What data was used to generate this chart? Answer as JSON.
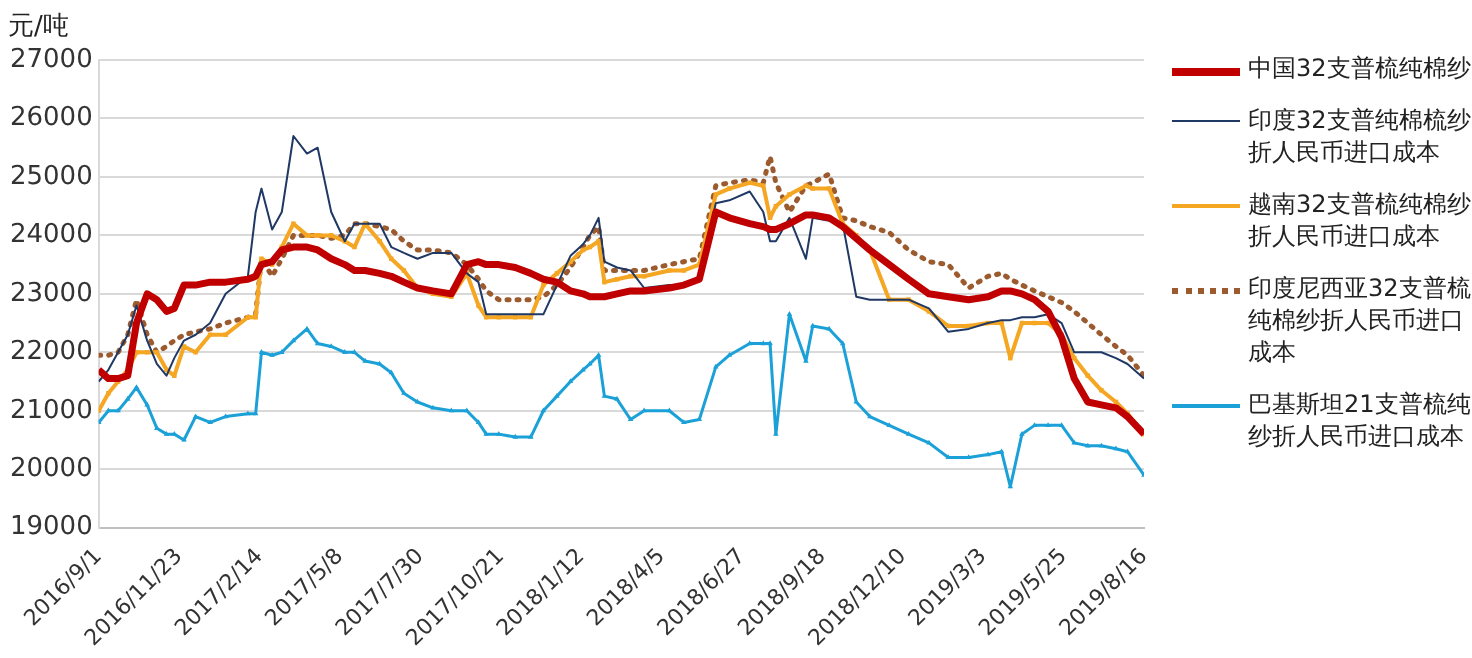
{
  "chart_data": {
    "type": "line",
    "ylabel": "元/吨",
    "ylim": [
      19000,
      27000
    ],
    "yticks": [
      19000,
      20000,
      21000,
      22000,
      23000,
      24000,
      25000,
      26000,
      27000
    ],
    "xlim": [
      "2016-09-01",
      "2019-08-16"
    ],
    "xticks": [
      {
        "value": "2016-09-01",
        "label": "2016/9/1"
      },
      {
        "value": "2016-11-23",
        "label": "2016/11/23"
      },
      {
        "value": "2017-02-14",
        "label": "2017/2/14"
      },
      {
        "value": "2017-05-08",
        "label": "2017/5/8"
      },
      {
        "value": "2017-07-30",
        "label": "2017/7/30"
      },
      {
        "value": "2017-10-21",
        "label": "2017/10/21"
      },
      {
        "value": "2018-01-12",
        "label": "2018/1/12"
      },
      {
        "value": "2018-04-05",
        "label": "2018/4/5"
      },
      {
        "value": "2018-06-27",
        "label": "2018/6/27"
      },
      {
        "value": "2018-09-18",
        "label": "2018/9/18"
      },
      {
        "value": "2018-12-10",
        "label": "2018/12/10"
      },
      {
        "value": "2019-03-03",
        "label": "2019/3/3"
      },
      {
        "value": "2019-05-25",
        "label": "2019/5/25"
      },
      {
        "value": "2019-08-16",
        "label": "2019/8/16"
      }
    ],
    "x": [
      "2016-09-01",
      "2016-09-11",
      "2016-09-21",
      "2016-10-01",
      "2016-10-10",
      "2016-10-21",
      "2016-10-31",
      "2016-11-10",
      "2016-11-18",
      "2016-11-28",
      "2016-12-10",
      "2016-12-25",
      "2017-01-10",
      "2017-02-02",
      "2017-02-10",
      "2017-02-16",
      "2017-02-27",
      "2017-03-09",
      "2017-03-21",
      "2017-04-04",
      "2017-04-15",
      "2017-04-29",
      "2017-05-13",
      "2017-05-23",
      "2017-06-03",
      "2017-06-18",
      "2017-06-30",
      "2017-07-13",
      "2017-07-27",
      "2017-08-12",
      "2017-08-31",
      "2017-09-16",
      "2017-09-28",
      "2017-10-06",
      "2017-10-19",
      "2017-11-05",
      "2017-11-21",
      "2017-12-04",
      "2017-12-18",
      "2018-01-01",
      "2018-01-14",
      "2018-01-21",
      "2018-01-30",
      "2018-02-05",
      "2018-02-18",
      "2018-03-04",
      "2018-03-18",
      "2018-04-13",
      "2018-04-28",
      "2018-05-14",
      "2018-05-31",
      "2018-06-14",
      "2018-07-05",
      "2018-07-19",
      "2018-07-26",
      "2018-08-01",
      "2018-08-15",
      "2018-09-01",
      "2018-09-08",
      "2018-09-25",
      "2018-10-09",
      "2018-10-23",
      "2018-11-06",
      "2018-11-26",
      "2018-12-16",
      "2019-01-06",
      "2019-01-26",
      "2019-02-16",
      "2019-03-08",
      "2019-03-22",
      "2019-03-31",
      "2019-04-12",
      "2019-04-25",
      "2019-05-09",
      "2019-05-23",
      "2019-06-05",
      "2019-06-19",
      "2019-07-03",
      "2019-07-18",
      "2019-07-30",
      "2019-08-16"
    ],
    "series": [
      {
        "name": "中国32支普梳纯棉纱",
        "color": "#c00000",
        "line_style": "solid",
        "marker": "none",
        "values": [
          21700,
          21550,
          21550,
          21600,
          22500,
          23000,
          22900,
          22700,
          22750,
          23150,
          23150,
          23200,
          23200,
          23250,
          23300,
          23500,
          23550,
          23750,
          23800,
          23800,
          23750,
          23600,
          23500,
          23400,
          23400,
          23350,
          23300,
          23200,
          23100,
          23050,
          23000,
          23500,
          23550,
          23500,
          23500,
          23450,
          23350,
          23250,
          23200,
          23050,
          23000,
          22950,
          22950,
          22950,
          23000,
          23050,
          23050,
          23100,
          23150,
          23250,
          24400,
          24300,
          24200,
          24150,
          24100,
          24100,
          24200,
          24350,
          24350,
          24300,
          24150,
          23950,
          23750,
          23500,
          23250,
          23000,
          22950,
          22900,
          22950,
          23050,
          23050,
          23000,
          22900,
          22700,
          22250,
          21550,
          21150,
          21100,
          21050,
          20900,
          20600
        ]
      },
      {
        "name": "印度32支普纯棉梳纱折人民币进口成本",
        "color": "#1f3864",
        "line_style": "solid",
        "marker": "none",
        "values": [
          21500,
          21700,
          22000,
          22300,
          22800,
          22200,
          21800,
          21600,
          21900,
          22200,
          22300,
          22500,
          23000,
          23300,
          24400,
          24800,
          24100,
          24400,
          25700,
          25400,
          25500,
          24400,
          23900,
          24200,
          24200,
          24200,
          23800,
          23700,
          23600,
          23700,
          23700,
          23350,
          23200,
          22650,
          22650,
          22650,
          22650,
          22650,
          23150,
          23650,
          23850,
          24000,
          24300,
          23550,
          23450,
          23400,
          23100,
          23150,
          23150,
          23300,
          24550,
          24600,
          24750,
          24400,
          23900,
          23900,
          24300,
          23600,
          24300,
          24250,
          24200,
          22950,
          22900,
          22900,
          22900,
          22750,
          22350,
          22400,
          22500,
          22550,
          22550,
          22600,
          22600,
          22650,
          22500,
          22000,
          22000,
          22000,
          21900,
          21800,
          21550
        ]
      },
      {
        "name": "越南32支普梳纯棉纱折人民币进口成本",
        "color": "#f5a623",
        "line_style": "solid",
        "marker": "square",
        "values": [
          21000,
          21300,
          21500,
          21700,
          22000,
          22000,
          22000,
          21700,
          21600,
          22100,
          22000,
          22300,
          22300,
          22600,
          22600,
          23600,
          23500,
          23800,
          24200,
          24000,
          24000,
          24000,
          23900,
          23800,
          24200,
          23900,
          23600,
          23400,
          23100,
          23000,
          22950,
          23350,
          22800,
          22600,
          22600,
          22600,
          22600,
          23150,
          23350,
          23550,
          23750,
          23800,
          23900,
          23200,
          23250,
          23300,
          23300,
          23400,
          23400,
          23500,
          24700,
          24800,
          24900,
          24850,
          24300,
          24500,
          24700,
          24850,
          24800,
          24800,
          24200,
          24000,
          23750,
          22900,
          22900,
          22700,
          22450,
          22450,
          22500,
          22500,
          21900,
          22500,
          22500,
          22500,
          22300,
          21900,
          21600,
          21350,
          21150,
          20950,
          20600
        ]
      },
      {
        "name": "印度尼西亚32支普梳纯棉纱折人民币进口成本",
        "color": "#9c5b2e",
        "line_style": "dotted",
        "marker": "none",
        "values": [
          21950,
          21950,
          22000,
          22300,
          22900,
          22300,
          22000,
          22100,
          22200,
          22300,
          22350,
          22400,
          22500,
          22600,
          22650,
          23600,
          23300,
          23600,
          24000,
          24000,
          24000,
          23950,
          24000,
          24200,
          24200,
          24150,
          24100,
          23900,
          23750,
          23750,
          23700,
          23500,
          23250,
          23050,
          22900,
          22900,
          22900,
          22950,
          23150,
          23450,
          23800,
          24000,
          24150,
          23400,
          23400,
          23400,
          23400,
          23500,
          23550,
          23600,
          24850,
          24900,
          24950,
          24900,
          25350,
          24900,
          24400,
          24850,
          24900,
          25050,
          24300,
          24250,
          24150,
          24050,
          23750,
          23550,
          23500,
          23100,
          23300,
          23350,
          23250,
          23150,
          23050,
          22950,
          22850,
          22700,
          22500,
          22300,
          22100,
          21950,
          21600
        ]
      },
      {
        "name": "巴基斯坦21支普梳纯纱折人民币进口成本",
        "color": "#1ba1d8",
        "line_style": "solid",
        "marker": "triangle",
        "values": [
          20800,
          21000,
          21000,
          21200,
          21400,
          21100,
          20700,
          20600,
          20600,
          20500,
          20900,
          20800,
          20900,
          20950,
          20950,
          22000,
          21950,
          22000,
          22200,
          22400,
          22150,
          22100,
          22000,
          22000,
          21850,
          21800,
          21650,
          21300,
          21150,
          21050,
          21000,
          21000,
          20800,
          20600,
          20600,
          20550,
          20550,
          21000,
          21250,
          21500,
          21700,
          21800,
          21950,
          21250,
          21200,
          20850,
          21000,
          21000,
          20800,
          20850,
          21750,
          21950,
          22150,
          22150,
          22150,
          20600,
          22650,
          21850,
          22450,
          22400,
          22150,
          21150,
          20900,
          20750,
          20600,
          20450,
          20200,
          20200,
          20250,
          20300,
          19700,
          20600,
          20750,
          20750,
          20750,
          20450,
          20400,
          20400,
          20350,
          20300,
          19900
        ]
      }
    ],
    "grid": "y",
    "legend": "right"
  }
}
